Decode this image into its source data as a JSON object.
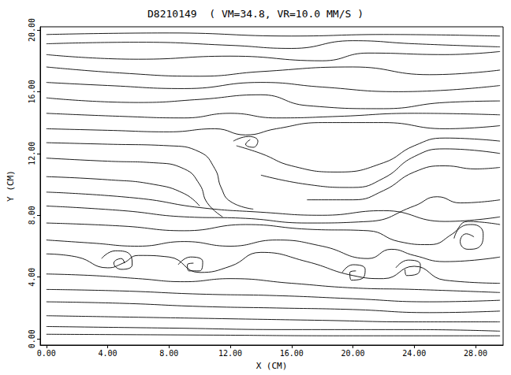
{
  "chart_data": {
    "type": "streamline",
    "title": "D8210149  ( VM=34.8, VR=10.0 MM/S )",
    "x_label": "X (CM)",
    "y_label": "Y (CM)",
    "color": "#000000",
    "grid": false,
    "xlim": [
      -0.4,
      29.8
    ],
    "ylim": [
      -0.4,
      20.2
    ],
    "xticks": [
      {
        "value": 0,
        "label": "0.00"
      },
      {
        "value": 4,
        "label": "4.00"
      },
      {
        "value": 8,
        "label": "8.00"
      },
      {
        "value": 12,
        "label": "12.00"
      },
      {
        "value": 16,
        "label": "16.00"
      },
      {
        "value": 20,
        "label": "20.00"
      },
      {
        "value": 24,
        "label": "24.00"
      },
      {
        "value": 28,
        "label": "28.00"
      }
    ],
    "yticks": [
      {
        "value": 0,
        "label": "0.00"
      },
      {
        "value": 4,
        "label": "4.00"
      },
      {
        "value": 8,
        "label": "8.00"
      },
      {
        "value": 12,
        "label": "12.00"
      },
      {
        "value": 16,
        "label": "16.00"
      },
      {
        "value": 20,
        "label": "20.00"
      }
    ],
    "streamlines": [
      [
        [
          0,
          19.7
        ],
        [
          8,
          19.8
        ],
        [
          16,
          19.6
        ],
        [
          22,
          19.7
        ],
        [
          29.6,
          19.6
        ]
      ],
      [
        [
          0,
          19.1
        ],
        [
          6,
          19.2
        ],
        [
          12,
          19.0
        ],
        [
          16,
          18.8
        ],
        [
          20,
          19.3
        ],
        [
          24,
          19.1
        ],
        [
          29.6,
          18.9
        ]
      ],
      [
        [
          0,
          18.4
        ],
        [
          6,
          18.1
        ],
        [
          12,
          18.3
        ],
        [
          18,
          18.0
        ],
        [
          21,
          18.5
        ],
        [
          26,
          18.4
        ],
        [
          29.6,
          18.6
        ]
      ],
      [
        [
          0,
          17.6
        ],
        [
          5,
          17.2
        ],
        [
          10,
          17.0
        ],
        [
          14,
          17.3
        ],
        [
          20,
          17.6
        ],
        [
          25,
          17.1
        ],
        [
          29.6,
          17.4
        ]
      ],
      [
        [
          0,
          16.6
        ],
        [
          4,
          16.4
        ],
        [
          9,
          16.2
        ],
        [
          14,
          16.6
        ],
        [
          18,
          16.3
        ],
        [
          23,
          16.0
        ],
        [
          29.6,
          16.4
        ]
      ],
      [
        [
          0,
          15.6
        ],
        [
          6,
          15.3
        ],
        [
          10,
          15.5
        ],
        [
          14,
          15.8
        ],
        [
          17,
          15.1
        ],
        [
          22,
          14.9
        ],
        [
          26,
          15.3
        ],
        [
          29.6,
          15.4
        ]
      ],
      [
        [
          0,
          14.6
        ],
        [
          5,
          14.4
        ],
        [
          9,
          14.3
        ],
        [
          12,
          14.6
        ],
        [
          15,
          14.3
        ],
        [
          19,
          14.4
        ],
        [
          24,
          14.6
        ],
        [
          29.6,
          14.5
        ]
      ],
      [
        [
          0,
          13.6
        ],
        [
          4,
          13.5
        ],
        [
          8,
          13.4
        ],
        [
          11,
          13.6
        ],
        [
          13,
          13.2
        ],
        [
          15,
          13.6
        ],
        [
          18,
          14.0
        ],
        [
          22,
          14.0
        ],
        [
          26,
          13.6
        ],
        [
          29.6,
          13.8
        ]
      ],
      [
        [
          0,
          12.7
        ],
        [
          4,
          12.6
        ],
        [
          8,
          12.5
        ],
        [
          10,
          12.1
        ],
        [
          11,
          11.0
        ],
        [
          11.4,
          9.8
        ],
        [
          12,
          8.9
        ],
        [
          13.5,
          8.4
        ]
      ],
      [
        [
          12.2,
          12.8
        ],
        [
          13.2,
          13.1
        ],
        [
          13.8,
          12.8
        ],
        [
          13.5,
          12.4
        ],
        [
          13,
          12.6
        ],
        [
          13.3,
          12.9
        ]
      ],
      [
        [
          12.4,
          12.5
        ],
        [
          14,
          12.0
        ],
        [
          16,
          11.2
        ],
        [
          19,
          10.8
        ],
        [
          22,
          11.4
        ],
        [
          24,
          12.5
        ],
        [
          26,
          13.0
        ],
        [
          29.6,
          12.8
        ]
      ],
      [
        [
          0,
          11.7
        ],
        [
          4,
          11.5
        ],
        [
          7,
          11.4
        ],
        [
          9,
          11.0
        ],
        [
          10,
          10.0
        ],
        [
          10.5,
          8.8
        ],
        [
          11.5,
          7.9
        ]
      ],
      [
        [
          14,
          10.6
        ],
        [
          17,
          10.0
        ],
        [
          20,
          9.8
        ],
        [
          22,
          10.4
        ],
        [
          24,
          11.8
        ],
        [
          26,
          12.3
        ],
        [
          29.6,
          12.0
        ]
      ],
      [
        [
          0,
          10.5
        ],
        [
          4,
          10.3
        ],
        [
          7,
          10.0
        ],
        [
          9,
          9.4
        ],
        [
          10,
          8.6
        ]
      ],
      [
        [
          17,
          9.0
        ],
        [
          20,
          9.0
        ],
        [
          22,
          9.6
        ],
        [
          24,
          10.8
        ],
        [
          26,
          11.2
        ],
        [
          28,
          11.0
        ],
        [
          29.6,
          11.1
        ]
      ],
      [
        [
          0,
          9.5
        ],
        [
          6,
          9.1
        ],
        [
          10,
          8.5
        ],
        [
          14,
          8.2
        ],
        [
          18,
          8.0
        ],
        [
          22,
          8.3
        ],
        [
          26,
          7.6
        ],
        [
          29.6,
          7.9
        ]
      ],
      [
        [
          0,
          8.6
        ],
        [
          5,
          8.3
        ],
        [
          9,
          7.9
        ],
        [
          13,
          7.8
        ],
        [
          17,
          7.5
        ],
        [
          21,
          7.6
        ],
        [
          24,
          8.6
        ],
        [
          25.5,
          9.2
        ],
        [
          27,
          8.8
        ],
        [
          29.6,
          9.0
        ]
      ],
      [
        [
          0,
          7.5
        ],
        [
          5,
          7.3
        ],
        [
          9,
          7.0
        ],
        [
          13,
          7.4
        ],
        [
          17,
          7.1
        ],
        [
          21,
          7.0
        ],
        [
          23,
          6.3
        ],
        [
          25,
          6.1
        ],
        [
          26.5,
          6.8
        ],
        [
          27.5,
          7.6
        ],
        [
          29.6,
          7.4
        ]
      ],
      [
        [
          26.6,
          6.5
        ],
        [
          27.0,
          7.2
        ],
        [
          27.8,
          7.4
        ],
        [
          28.5,
          6.8
        ],
        [
          28.3,
          6.0
        ],
        [
          27.5,
          5.8
        ],
        [
          27.0,
          6.3
        ],
        [
          27.4,
          6.8
        ],
        [
          27.9,
          6.6
        ]
      ],
      [
        [
          0,
          6.4
        ],
        [
          3,
          6.2
        ],
        [
          6,
          6.0
        ],
        [
          9,
          6.3
        ],
        [
          12,
          6.0
        ],
        [
          15,
          6.4
        ],
        [
          18,
          6.0
        ],
        [
          21,
          5.2
        ],
        [
          22.5,
          5.8
        ],
        [
          24,
          5.4
        ],
        [
          26,
          5.0
        ],
        [
          29.6,
          5.3
        ]
      ],
      [
        [
          0,
          5.5
        ],
        [
          2,
          5.3
        ],
        [
          4,
          4.6
        ],
        [
          5,
          4.9
        ],
        [
          6,
          5.4
        ],
        [
          8,
          5.3
        ],
        [
          10,
          4.3
        ],
        [
          12,
          4.7
        ],
        [
          14,
          5.6
        ],
        [
          17,
          5.0
        ],
        [
          20,
          4.1
        ],
        [
          22,
          3.9
        ],
        [
          24,
          4.7
        ],
        [
          26,
          3.8
        ],
        [
          29.6,
          3.6
        ]
      ],
      [
        [
          3.6,
          5.2
        ],
        [
          4.5,
          5.7
        ],
        [
          5.5,
          5.4
        ],
        [
          5.6,
          4.8
        ],
        [
          4.9,
          4.5
        ],
        [
          4.4,
          4.9
        ],
        [
          4.9,
          5.2
        ],
        [
          5.1,
          4.9
        ]
      ],
      [
        [
          8.6,
          4.8
        ],
        [
          9.4,
          5.3
        ],
        [
          10.2,
          5.0
        ],
        [
          10.0,
          4.4
        ],
        [
          9.3,
          4.4
        ],
        [
          9.2,
          4.8
        ],
        [
          9.6,
          4.9
        ]
      ],
      [
        [
          19.3,
          4.3
        ],
        [
          20.0,
          4.8
        ],
        [
          20.8,
          4.5
        ],
        [
          20.6,
          3.9
        ],
        [
          19.9,
          3.8
        ],
        [
          19.8,
          4.3
        ],
        [
          20.2,
          4.4
        ]
      ],
      [
        [
          22.8,
          4.6
        ],
        [
          23.6,
          5.1
        ],
        [
          24.4,
          4.8
        ],
        [
          24.2,
          4.2
        ],
        [
          23.5,
          4.1
        ],
        [
          23.4,
          4.5
        ]
      ],
      [
        [
          0,
          4.2
        ],
        [
          3,
          4.1
        ],
        [
          6,
          3.9
        ],
        [
          9,
          3.7
        ],
        [
          12,
          3.9
        ],
        [
          16,
          3.6
        ],
        [
          20,
          3.3
        ],
        [
          24,
          3.2
        ],
        [
          29.6,
          3.0
        ]
      ],
      [
        [
          0,
          3.2
        ],
        [
          5,
          3.1
        ],
        [
          10,
          2.9
        ],
        [
          15,
          2.8
        ],
        [
          20,
          2.6
        ],
        [
          25,
          2.4
        ],
        [
          29.6,
          2.5
        ]
      ],
      [
        [
          0,
          2.4
        ],
        [
          5,
          2.3
        ],
        [
          10,
          2.1
        ],
        [
          15,
          2.0
        ],
        [
          20,
          1.9
        ],
        [
          25,
          1.7
        ],
        [
          29.6,
          1.8
        ]
      ],
      [
        [
          0,
          1.5
        ],
        [
          6,
          1.4
        ],
        [
          12,
          1.3
        ],
        [
          18,
          1.2
        ],
        [
          24,
          1.1
        ],
        [
          29.6,
          1.1
        ]
      ],
      [
        [
          0,
          0.8
        ],
        [
          8,
          0.7
        ],
        [
          16,
          0.6
        ],
        [
          24,
          0.6
        ],
        [
          29.6,
          0.5
        ]
      ],
      [
        [
          0,
          0.3
        ],
        [
          10,
          0.25
        ],
        [
          20,
          0.2
        ],
        [
          29.6,
          0.2
        ]
      ]
    ]
  }
}
